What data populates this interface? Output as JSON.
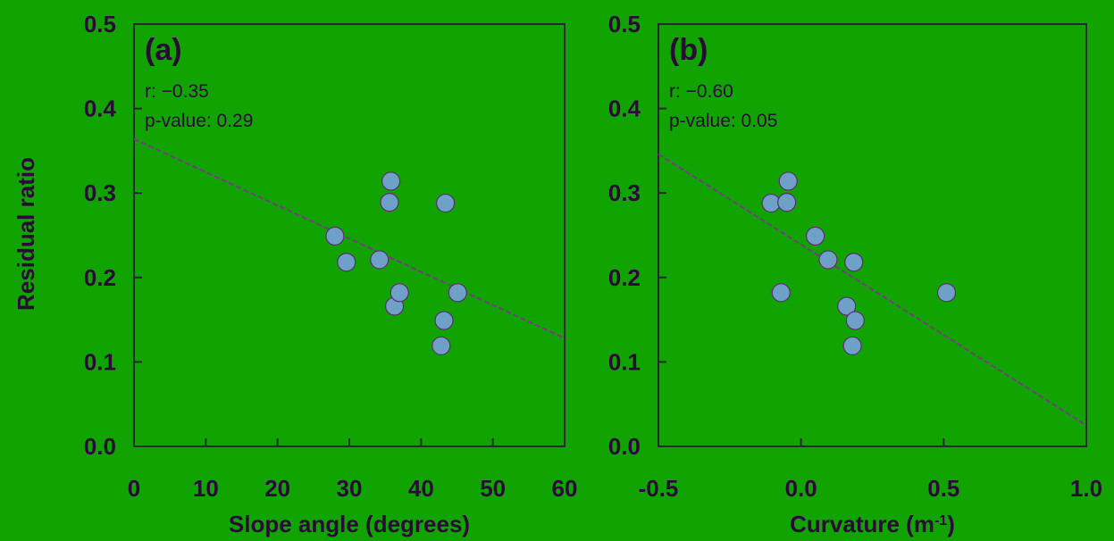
{
  "colors": {
    "background": "#11a300",
    "axis": "#222a2e",
    "text": "#2b0a3a",
    "point_fill": "#6fa0c8",
    "point_stroke": "#5a2e6e",
    "trendline": "#7a3a8a"
  },
  "ylabel": "Residual ratio",
  "chart_data": [
    {
      "type": "scatter",
      "panel_label": "(a)",
      "stats": [
        "r: −0.35",
        "p-value: 0.29"
      ],
      "xlabel": "Slope angle (degrees)",
      "ylabel": "Residual ratio",
      "xlim": [
        0,
        60
      ],
      "ylim": [
        0.0,
        0.5
      ],
      "xticks": [
        "0",
        "10",
        "20",
        "30",
        "40",
        "50",
        "60"
      ],
      "yticks": [
        "0.0",
        "0.1",
        "0.2",
        "0.3",
        "0.4",
        "0.5"
      ],
      "grid": false,
      "x": [
        28.0,
        29.6,
        34.2,
        35.6,
        35.8,
        36.3,
        37.0,
        42.8,
        43.2,
        43.4,
        45.1
      ],
      "y": [
        0.249,
        0.218,
        0.221,
        0.289,
        0.314,
        0.166,
        0.182,
        0.119,
        0.149,
        0.288,
        0.182
      ],
      "trendline": {
        "x": [
          0,
          60
        ],
        "y": [
          0.364,
          0.128
        ]
      }
    },
    {
      "type": "scatter",
      "panel_label": "(b)",
      "stats": [
        "r: −0.60",
        "p-value: 0.05"
      ],
      "xlabel": "Curvature (m",
      "xlabel_sup": "-1",
      "xlabel_tail": ")",
      "xlim": [
        -0.5,
        1.0
      ],
      "ylim": [
        0.0,
        0.5
      ],
      "xticks": [
        "-0.5",
        "0.0",
        "0.5",
        "1.0"
      ],
      "yticks": [
        "0.0",
        "0.1",
        "0.2",
        "0.3",
        "0.4",
        "0.5"
      ],
      "grid": false,
      "x": [
        -0.105,
        -0.07,
        -0.05,
        -0.045,
        0.05,
        0.095,
        0.16,
        0.18,
        0.185,
        0.19,
        0.51
      ],
      "y": [
        0.288,
        0.182,
        0.289,
        0.314,
        0.249,
        0.221,
        0.166,
        0.119,
        0.218,
        0.149,
        0.182
      ],
      "trendline": {
        "x": [
          -0.5,
          1.0
        ],
        "y": [
          0.346,
          0.025
        ]
      }
    }
  ]
}
